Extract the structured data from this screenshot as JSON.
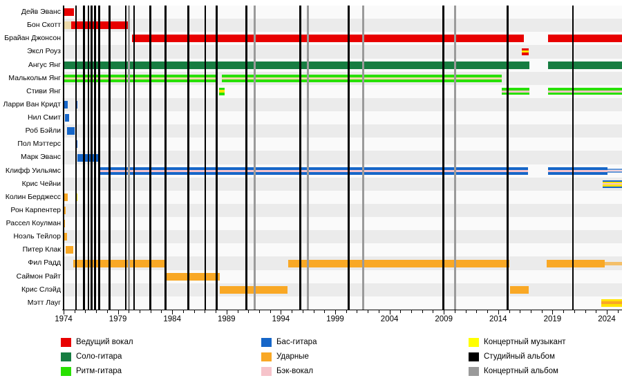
{
  "colors": {
    "red": "#e80000",
    "darkgreen": "#177d41",
    "green": "#28e000",
    "blue": "#1666c8",
    "orange": "#f9a825",
    "pink": "#f6c3ca",
    "wheat": "#ecd9a9",
    "yellow": "#ffe400",
    "legend_yellow": "#ffff00",
    "black": "#000000",
    "gray": "#9a9a9a",
    "zebra_dark": "#ebebeb",
    "zebra_light": "#fafafa"
  },
  "chart_data": {
    "type": "bar",
    "subtype": "timeline-gantt",
    "title": "",
    "axis": {
      "year_start": 1974,
      "year_end": 2025.6,
      "tick_years": [
        1974,
        1979,
        1984,
        1989,
        1994,
        1999,
        2004,
        2009,
        2014,
        2019,
        2024
      ],
      "minor_tick_step": 1
    },
    "categories": [
      "Дейв Эванс",
      "Бон Скотт",
      "Брайан Джонсон",
      "Эксл Роуз",
      "Ангус Янг",
      "Малькольм Янг",
      "Стиви Янг",
      "Ларри Ван Кридт",
      "Нил Смит",
      "Роб Бэйли",
      "Пол Мэттерс",
      "Марк Эванс",
      "Клифф Уильямс",
      "Крис Чейни",
      "Колин Берджесс",
      "Рон Карпентер",
      "Рассел Коулман",
      "Ноэль Тейлор",
      "Питер Клак",
      "Фил Радд",
      "Саймон Райт",
      "Крис Слэйд",
      "Мэтт Лауг"
    ],
    "members": [
      {
        "name": "Дейв Эванс",
        "bars": [
          {
            "from": 1974.0,
            "to": 1974.95,
            "stripes": [
              [
                "red",
                11
              ]
            ]
          }
        ]
      },
      {
        "name": "Бон Скотт",
        "bars": [
          {
            "from": 1974.05,
            "to": 1974.7,
            "stripes": [
              [
                "wheat",
                11
              ]
            ]
          },
          {
            "from": 1974.7,
            "to": 1980.1,
            "stripes": [
              [
                "red",
                11
              ]
            ]
          }
        ]
      },
      {
        "name": "Брайан Джонсон",
        "bars": [
          {
            "from": 1980.3,
            "to": 2016.35,
            "stripes": [
              [
                "red",
                11
              ]
            ]
          },
          {
            "from": 2018.6,
            "to": 2025.6,
            "stripes": [
              [
                "red",
                11
              ]
            ]
          }
        ]
      },
      {
        "name": "Эксл Роуз",
        "bars": [
          {
            "from": 2016.15,
            "to": 2016.8,
            "stripes": [
              [
                "red",
                3.5
              ],
              [
                "yellow",
                3
              ],
              [
                "red",
                3.5
              ]
            ]
          }
        ]
      },
      {
        "name": "Ангус Янг",
        "bars": [
          {
            "from": 1974.0,
            "to": 2016.9,
            "stripes": [
              [
                "darkgreen",
                11
              ]
            ]
          },
          {
            "from": 2018.6,
            "to": 2025.6,
            "stripes": [
              [
                "darkgreen",
                11
              ]
            ]
          }
        ]
      },
      {
        "name": "Малькольм Янг",
        "bars": [
          {
            "from": 1974.0,
            "to": 1988.2,
            "stripes": [
              [
                "green",
                4
              ],
              [
                "wheat",
                3
              ],
              [
                "green",
                4
              ]
            ]
          },
          {
            "from": 1988.55,
            "to": 2014.3,
            "stripes": [
              [
                "green",
                4
              ],
              [
                "wheat",
                3
              ],
              [
                "green",
                4
              ]
            ]
          }
        ]
      },
      {
        "name": "Стиви Янг",
        "bars": [
          {
            "from": 1988.3,
            "to": 1988.85,
            "stripes": [
              [
                "green",
                3.5
              ],
              [
                "yellow",
                4
              ],
              [
                "green",
                3.5
              ]
            ]
          },
          {
            "from": 2014.35,
            "to": 2016.9,
            "stripes": [
              [
                "green",
                3.5
              ],
              [
                "pink",
                3
              ],
              [
                "green",
                3.5
              ]
            ]
          },
          {
            "from": 2018.6,
            "to": 2025.6,
            "stripes": [
              [
                "green",
                3.5
              ],
              [
                "pink",
                3
              ],
              [
                "green",
                3.5
              ]
            ]
          }
        ]
      },
      {
        "name": "Ларри Ван Кридт",
        "bars": [
          {
            "from": 1974.0,
            "to": 1974.35,
            "stripes": [
              [
                "blue",
                11
              ]
            ]
          },
          {
            "from": 1975.05,
            "to": 1975.3,
            "stripes": [
              [
                "blue",
                11
              ]
            ]
          }
        ]
      },
      {
        "name": "Нил Смит",
        "bars": [
          {
            "from": 1974.1,
            "to": 1974.5,
            "stripes": [
              [
                "blue",
                11
              ]
            ]
          }
        ]
      },
      {
        "name": "Роб Бэйли",
        "bars": [
          {
            "from": 1974.3,
            "to": 1975.0,
            "stripes": [
              [
                "blue",
                11
              ]
            ]
          }
        ]
      },
      {
        "name": "Пол Мэттерс",
        "bars": [
          {
            "from": 1975.05,
            "to": 1975.3,
            "stripes": [
              [
                "blue",
                11
              ]
            ]
          }
        ]
      },
      {
        "name": "Марк Эванс",
        "bars": [
          {
            "from": 1975.3,
            "to": 1977.4,
            "stripes": [
              [
                "blue",
                11
              ]
            ]
          }
        ]
      },
      {
        "name": "Клифф Уильямс",
        "bars": [
          {
            "from": 1977.4,
            "to": 2016.75,
            "stripes": [
              [
                "blue",
                4
              ],
              [
                "pink",
                3
              ],
              [
                "blue",
                4
              ]
            ]
          },
          {
            "from": 2018.6,
            "to": 2024.05,
            "stripes": [
              [
                "blue",
                4
              ],
              [
                "pink",
                3
              ],
              [
                "blue",
                4
              ]
            ]
          },
          {
            "from": 2024.05,
            "to": 2025.6,
            "faded": true,
            "stripes": [
              [
                "blue",
                2
              ],
              [
                "pink",
                2
              ],
              [
                "blue",
                2
              ]
            ]
          }
        ]
      },
      {
        "name": "Крис Чейни",
        "bars": [
          {
            "from": 2023.6,
            "to": 2025.6,
            "stripes": [
              [
                "blue",
                2
              ],
              [
                "yellow",
                2.5
              ],
              [
                "pink",
                2
              ],
              [
                "yellow",
                2.5
              ],
              [
                "blue",
                2
              ]
            ]
          }
        ]
      },
      {
        "name": "Колин Берджесс",
        "bars": [
          {
            "from": 1974.0,
            "to": 1974.35,
            "stripes": [
              [
                "orange",
                11
              ]
            ]
          },
          {
            "from": 1975.15,
            "to": 1975.28,
            "stripes": [
              [
                "yellow",
                11
              ]
            ]
          }
        ]
      },
      {
        "name": "Рон Карпентер",
        "bars": [
          {
            "from": 1974.0,
            "to": 1974.18,
            "stripes": [
              [
                "orange",
                11
              ]
            ]
          }
        ]
      },
      {
        "name": "Рассел Коулман",
        "bars": [
          {
            "from": 1974.0,
            "to": 1974.15,
            "stripes": [
              [
                "orange",
                11
              ]
            ]
          }
        ]
      },
      {
        "name": "Ноэль Тейлор",
        "bars": [
          {
            "from": 1974.05,
            "to": 1974.32,
            "stripes": [
              [
                "orange",
                11
              ]
            ]
          }
        ]
      },
      {
        "name": "Питер Клак",
        "bars": [
          {
            "from": 1974.2,
            "to": 1974.92,
            "stripes": [
              [
                "orange",
                11
              ]
            ]
          }
        ]
      },
      {
        "name": "Фил Радд",
        "bars": [
          {
            "from": 1974.9,
            "to": 1983.5,
            "stripes": [
              [
                "orange",
                11
              ]
            ]
          },
          {
            "from": 1994.7,
            "to": 2015.05,
            "stripes": [
              [
                "orange",
                11
              ]
            ]
          },
          {
            "from": 2018.45,
            "to": 2023.8,
            "stripes": [
              [
                "orange",
                11
              ]
            ]
          },
          {
            "from": 2023.8,
            "to": 2025.6,
            "faded": true,
            "stripes": [
              [
                "orange",
                5
              ]
            ]
          }
        ]
      },
      {
        "name": "Саймон Райт",
        "bars": [
          {
            "from": 1983.5,
            "to": 1988.4,
            "stripes": [
              [
                "orange",
                11
              ]
            ]
          }
        ]
      },
      {
        "name": "Крис Слэйд",
        "bars": [
          {
            "from": 1988.4,
            "to": 1994.6,
            "stripes": [
              [
                "orange",
                11
              ]
            ]
          },
          {
            "from": 2015.1,
            "to": 2016.8,
            "stripes": [
              [
                "orange",
                11
              ]
            ]
          }
        ]
      },
      {
        "name": "Мэтт Лауг",
        "bars": [
          {
            "from": 2023.5,
            "to": 2025.6,
            "stripes": [
              [
                "yellow",
                3.5
              ],
              [
                "orange",
                4
              ],
              [
                "yellow",
                3.5
              ]
            ]
          }
        ]
      }
    ],
    "album_lines": {
      "studio_years": [
        1975.15,
        1975.9,
        1976.3,
        1976.6,
        1976.9,
        1977.3,
        1978.25,
        1979.75,
        1980.5,
        1982.0,
        1983.4,
        1985.5,
        1987.05,
        1988.1,
        1990.85,
        1995.8,
        2000.25,
        2008.95,
        2014.9,
        2020.9
      ],
      "live_years": [
        1980.0,
        1991.6,
        1996.5,
        2001.6,
        2010.05
      ]
    },
    "legend": {
      "columns": [
        [
          {
            "label": "Ведущий вокал",
            "color": "red"
          },
          {
            "label": "Соло-гитара",
            "color": "darkgreen"
          },
          {
            "label": "Ритм-гитара",
            "color": "green"
          }
        ],
        [
          {
            "label": "Бас-гитара",
            "color": "blue"
          },
          {
            "label": "Ударные",
            "color": "orange"
          },
          {
            "label": "Бэк-вокал",
            "color": "pink"
          }
        ],
        [
          {
            "label": "Концертный музыкант",
            "color": "legend_yellow"
          },
          {
            "label": "Студийный альбом",
            "color": "black"
          },
          {
            "label": "Концертный альбом",
            "color": "gray"
          }
        ]
      ]
    }
  }
}
